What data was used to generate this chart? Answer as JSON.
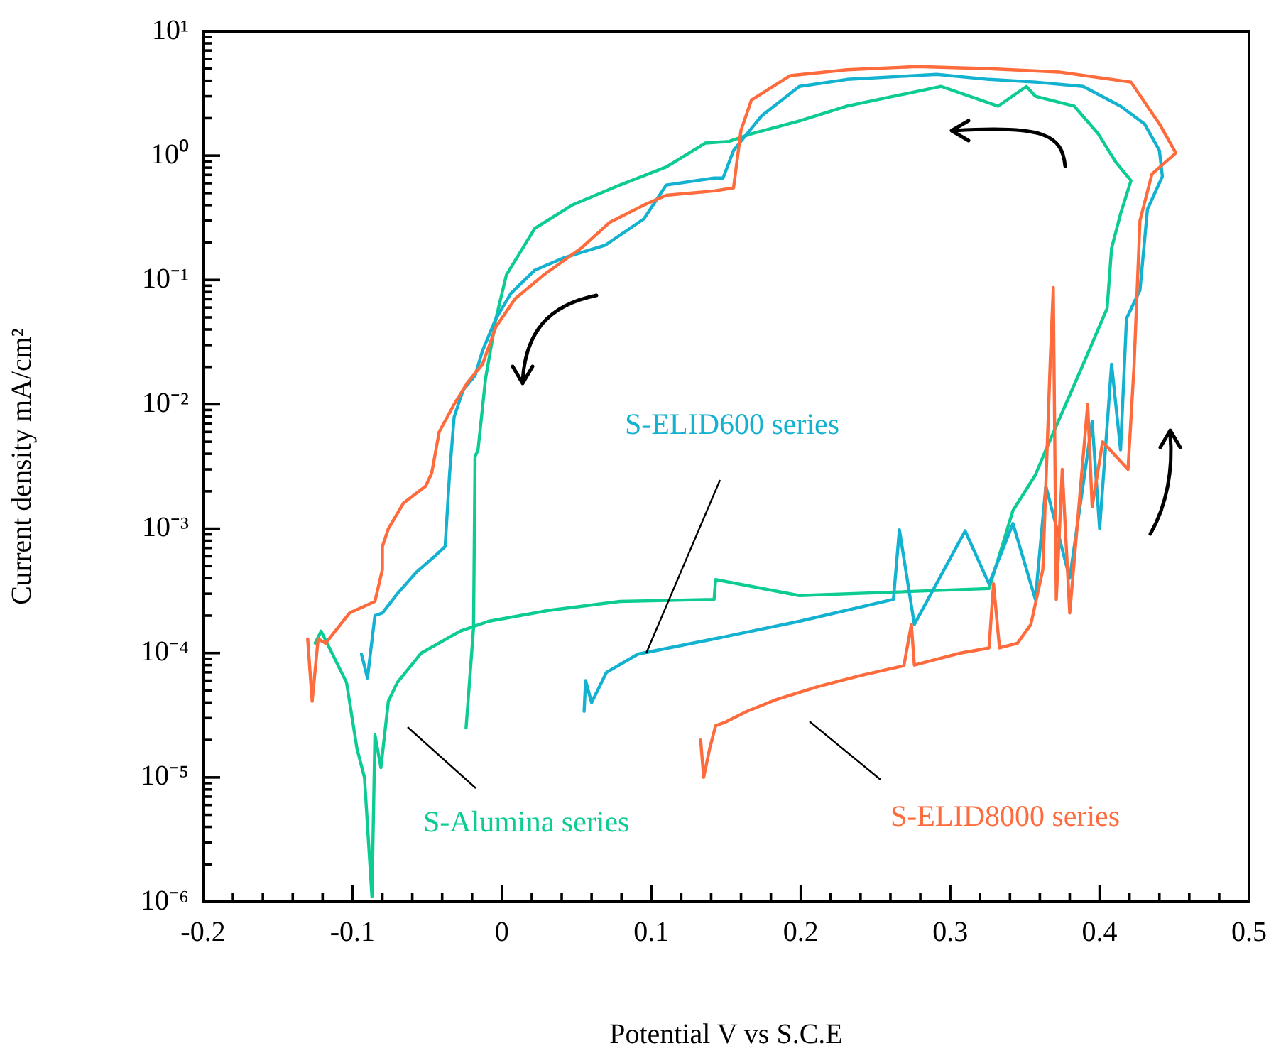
{
  "chart_data": {
    "type": "line",
    "xlabel": "Potential V vs S.C.E",
    "ylabel": "Current density mA/cm²",
    "log": "y",
    "grid": false,
    "legend": false,
    "marker": "none",
    "line_style": "solid",
    "xlim": [
      -0.2,
      0.5
    ],
    "ylim": [
      1e-06,
      10
    ],
    "xticks": [
      -0.2,
      {
        "value": -0.18,
        "label": null
      },
      {
        "value": -0.16,
        "label": null
      },
      {
        "value": -0.14,
        "label": null
      },
      {
        "value": -0.12,
        "label": null
      },
      -0.1,
      {
        "value": -0.08,
        "label": null
      },
      {
        "value": -0.06,
        "label": null
      },
      {
        "value": -0.04,
        "label": null
      },
      {
        "value": -0.02,
        "label": null
      },
      0,
      {
        "value": 0.02,
        "label": null
      },
      {
        "value": 0.04,
        "label": null
      },
      {
        "value": 0.06,
        "label": null
      },
      {
        "value": 0.08,
        "label": null
      },
      0.1,
      {
        "value": 0.12,
        "label": null
      },
      {
        "value": 0.14,
        "label": null
      },
      {
        "value": 0.16,
        "label": null
      },
      {
        "value": 0.18,
        "label": null
      },
      0.2,
      {
        "value": 0.22,
        "label": null
      },
      {
        "value": 0.24,
        "label": null
      },
      {
        "value": 0.26,
        "label": null
      },
      {
        "value": 0.28,
        "label": null
      },
      0.3,
      {
        "value": 0.32,
        "label": null
      },
      {
        "value": 0.34,
        "label": null
      },
      {
        "value": 0.36,
        "label": null
      },
      {
        "value": 0.38,
        "label": null
      },
      0.4,
      {
        "value": 0.42,
        "label": null
      },
      {
        "value": 0.44,
        "label": null
      },
      {
        "value": 0.46,
        "label": null
      },
      {
        "value": 0.48,
        "label": null
      },
      0.5
    ],
    "yticks": [
      {
        "value": 1e-06,
        "label": "10⁻⁶"
      },
      {
        "value": 2e-06,
        "label": null
      },
      {
        "value": 3e-06,
        "label": null
      },
      {
        "value": 4e-06,
        "label": null
      },
      {
        "value": 5e-06,
        "label": null
      },
      {
        "value": 6e-06,
        "label": null
      },
      {
        "value": 7e-06,
        "label": null
      },
      {
        "value": 8e-06,
        "label": null
      },
      {
        "value": 9e-06,
        "label": null
      },
      {
        "value": 1e-05,
        "label": "10⁻⁵"
      },
      {
        "value": 2e-05,
        "label": null
      },
      {
        "value": 3e-05,
        "label": null
      },
      {
        "value": 4e-05,
        "label": null
      },
      {
        "value": 5e-05,
        "label": null
      },
      {
        "value": 6e-05,
        "label": null
      },
      {
        "value": 7e-05,
        "label": null
      },
      {
        "value": 8e-05,
        "label": null
      },
      {
        "value": 9e-05,
        "label": null
      },
      {
        "value": 0.0001,
        "label": "10⁻⁴"
      },
      {
        "value": 0.0002,
        "label": null
      },
      {
        "value": 0.0003,
        "label": null
      },
      {
        "value": 0.0004,
        "label": null
      },
      {
        "value": 0.0005,
        "label": null
      },
      {
        "value": 0.0006,
        "label": null
      },
      {
        "value": 0.0007,
        "label": null
      },
      {
        "value": 0.0008,
        "label": null
      },
      {
        "value": 0.0009,
        "label": null
      },
      {
        "value": 0.001,
        "label": "10⁻³"
      },
      {
        "value": 0.002,
        "label": null
      },
      {
        "value": 0.003,
        "label": null
      },
      {
        "value": 0.004,
        "label": null
      },
      {
        "value": 0.005,
        "label": null
      },
      {
        "value": 0.006,
        "label": null
      },
      {
        "value": 0.007,
        "label": null
      },
      {
        "value": 0.008,
        "label": null
      },
      {
        "value": 0.009,
        "label": null
      },
      {
        "value": 0.01,
        "label": "10⁻²"
      },
      {
        "value": 0.02,
        "label": null
      },
      {
        "value": 0.03,
        "label": null
      },
      {
        "value": 0.04,
        "label": null
      },
      {
        "value": 0.05,
        "label": null
      },
      {
        "value": 0.06,
        "label": null
      },
      {
        "value": 0.07,
        "label": null
      },
      {
        "value": 0.08,
        "label": null
      },
      {
        "value": 0.09,
        "label": null
      },
      {
        "value": 0.1,
        "label": "10⁻¹"
      },
      {
        "value": 0.2,
        "label": null
      },
      {
        "value": 0.3,
        "label": null
      },
      {
        "value": 0.4,
        "label": null
      },
      {
        "value": 0.5,
        "label": null
      },
      {
        "value": 0.6,
        "label": null
      },
      {
        "value": 0.7,
        "label": null
      },
      {
        "value": 0.8,
        "label": null
      },
      {
        "value": 0.9,
        "label": null
      },
      {
        "value": 1,
        "label": "10⁰"
      },
      {
        "value": 2,
        "label": null
      },
      {
        "value": 3,
        "label": null
      },
      {
        "value": 4,
        "label": null
      },
      {
        "value": 5,
        "label": null
      },
      {
        "value": 6,
        "label": null
      },
      {
        "value": 7,
        "label": null
      },
      {
        "value": 8,
        "label": null
      },
      {
        "value": 9,
        "label": null
      },
      {
        "value": 10,
        "label": "10¹"
      }
    ],
    "series": [
      {
        "name": "S-ELID8000 series",
        "color": "#fe6b3c",
        "x": [
          0.133,
          0.135,
          0.139,
          0.143,
          0.15,
          0.164,
          0.183,
          0.212,
          0.24,
          0.269,
          0.274,
          0.276,
          0.307,
          0.326,
          0.329,
          0.333,
          0.345,
          0.354,
          0.362,
          0.367,
          0.369,
          0.371,
          0.375,
          0.38,
          0.392,
          0.395,
          0.402,
          0.419,
          0.423,
          0.427,
          0.435,
          0.451,
          0.44,
          0.421,
          0.373,
          0.326,
          0.278,
          0.231,
          0.193,
          0.167,
          0.16,
          0.155,
          0.142,
          0.11,
          0.095,
          0.072,
          0.053,
          0.028,
          0.009,
          -0.004,
          -0.013,
          -0.023,
          -0.032,
          -0.042,
          -0.047,
          -0.051,
          -0.066,
          -0.076,
          -0.08,
          -0.08,
          -0.085,
          -0.102,
          -0.118,
          -0.123,
          -0.127,
          -0.13
        ],
        "values": [
          2e-05,
          1e-05,
          1.7e-05,
          2.6e-05,
          2.8e-05,
          3.4e-05,
          4.2e-05,
          5.4e-05,
          6.6e-05,
          7.9e-05,
          0.00017,
          8e-05,
          0.0001,
          0.00011,
          0.00036,
          0.00011,
          0.00012,
          0.00017,
          0.00047,
          0.023,
          0.087,
          0.00027,
          0.003,
          0.00021,
          0.01,
          0.0015,
          0.005,
          0.003,
          0.02,
          0.3,
          0.71,
          1.05,
          1.8,
          3.9,
          4.7,
          5.0,
          5.2,
          4.9,
          4.4,
          2.8,
          1.6,
          0.55,
          0.52,
          0.48,
          0.4,
          0.29,
          0.18,
          0.11,
          0.071,
          0.042,
          0.021,
          0.015,
          0.01,
          0.006,
          0.0028,
          0.0022,
          0.0016,
          0.001,
          0.00072,
          0.00047,
          0.00026,
          0.00021,
          0.00012,
          0.00013,
          4.1e-05,
          0.00013
        ]
      },
      {
        "name": "S-ELID600 series",
        "color": "#12b2d0",
        "x": [
          0.055,
          0.056,
          0.06,
          0.07,
          0.091,
          0.142,
          0.199,
          0.262,
          0.266,
          0.276,
          0.31,
          0.326,
          0.342,
          0.357,
          0.364,
          0.38,
          0.395,
          0.4,
          0.408,
          0.414,
          0.418,
          0.427,
          0.432,
          0.442,
          0.44,
          0.43,
          0.414,
          0.389,
          0.357,
          0.326,
          0.291,
          0.231,
          0.199,
          0.174,
          0.155,
          0.148,
          0.142,
          0.11,
          0.095,
          0.069,
          0.041,
          0.022,
          0.006,
          -0.004,
          -0.013,
          -0.018,
          -0.026,
          -0.032,
          -0.035,
          -0.038,
          -0.045,
          -0.057,
          -0.07,
          -0.08,
          -0.085,
          -0.09,
          -0.094
        ],
        "values": [
          3.4e-05,
          6e-05,
          4e-05,
          7e-05,
          9.8e-05,
          0.00013,
          0.00018,
          0.00027,
          0.00098,
          0.00017,
          0.00096,
          0.00036,
          0.0011,
          0.00027,
          0.0022,
          0.0004,
          0.0073,
          0.001,
          0.021,
          0.0043,
          0.049,
          0.083,
          0.37,
          0.68,
          1.1,
          1.8,
          2.5,
          3.6,
          3.9,
          4.1,
          4.5,
          4.1,
          3.6,
          2.1,
          1.1,
          0.66,
          0.66,
          0.58,
          0.31,
          0.19,
          0.15,
          0.12,
          0.078,
          0.049,
          0.027,
          0.017,
          0.013,
          0.0079,
          0.0028,
          0.00072,
          0.0006,
          0.00045,
          0.0003,
          0.00021,
          0.0002,
          6.3e-05,
          9.8e-05
        ]
      },
      {
        "name": "S-Alumina series",
        "color": "#0dcc93",
        "x": [
          -0.125,
          -0.121,
          -0.104,
          -0.097,
          -0.092,
          -0.087,
          -0.085,
          -0.081,
          -0.076,
          -0.07,
          -0.054,
          -0.028,
          -0.009,
          0.031,
          0.079,
          0.142,
          0.143,
          0.199,
          0.326,
          0.335,
          0.342,
          0.357,
          0.364,
          0.389,
          0.405,
          0.408,
          0.414,
          0.421,
          0.411,
          0.399,
          0.383,
          0.357,
          0.351,
          0.332,
          0.294,
          0.262,
          0.231,
          0.199,
          0.167,
          0.152,
          0.136,
          0.11,
          0.079,
          0.047,
          0.022,
          0.003,
          -0.004,
          -0.011,
          -0.016,
          -0.018,
          -0.019,
          -0.024
        ],
        "values": [
          0.00012,
          0.00015,
          5.8e-05,
          1.7e-05,
          1e-05,
          1.1e-06,
          2.2e-05,
          1.2e-05,
          4.1e-05,
          5.8e-05,
          0.0001,
          0.00015,
          0.00018,
          0.00022,
          0.00026,
          0.00027,
          0.00039,
          0.00029,
          0.00033,
          0.00074,
          0.0014,
          0.0027,
          0.0043,
          0.021,
          0.059,
          0.18,
          0.34,
          0.63,
          0.88,
          1.5,
          2.5,
          3.0,
          3.6,
          2.5,
          3.6,
          3.0,
          2.5,
          1.9,
          1.5,
          1.3,
          1.26,
          0.81,
          0.58,
          0.4,
          0.26,
          0.11,
          0.049,
          0.016,
          0.0043,
          0.0038,
          0.00016,
          2.5e-05
        ]
      }
    ]
  }
}
